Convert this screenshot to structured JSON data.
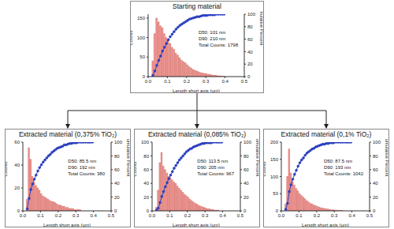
{
  "chart_data": [
    {
      "type": "histogram",
      "title": "Starting material",
      "x_label": "Length short axis (µm)",
      "y_label": "Counts",
      "y2_label": "Cumulative Percent",
      "annotations": [
        "D50: 101 nm",
        "D90: 210 nm",
        "Total Counts: 1798"
      ],
      "bins": [
        0.02,
        0.03,
        0.04,
        0.05,
        0.06,
        0.07,
        0.08,
        0.09,
        0.1,
        0.11,
        0.12,
        0.13,
        0.14,
        0.15,
        0.16,
        0.17,
        0.18,
        0.19,
        0.2,
        0.21,
        0.22,
        0.23,
        0.24,
        0.25,
        0.26,
        0.27,
        0.28,
        0.29,
        0.3,
        0.31,
        0.32,
        0.33,
        0.34,
        0.35,
        0.36,
        0.37,
        0.38,
        0.39,
        0.4
      ],
      "counts": [
        40,
        110,
        150,
        140,
        130,
        125,
        110,
        100,
        95,
        85,
        75,
        70,
        60,
        55,
        48,
        42,
        38,
        35,
        30,
        25,
        22,
        18,
        16,
        14,
        12,
        10,
        9,
        8,
        7,
        6,
        5,
        4,
        3,
        3,
        2,
        2,
        1,
        1
      ],
      "color": "#f4a0a0",
      "cumulative": {
        "type": "line",
        "axis": "y2",
        "color": "#2a3fbf",
        "marker": "circle",
        "values": [
          2,
          9,
          18,
          26,
          33,
          41,
          47,
          53,
          59,
          64,
          68,
          72,
          76,
          79,
          82,
          84,
          86,
          88,
          90,
          92,
          93,
          94,
          95,
          96,
          96,
          97,
          98,
          98,
          98,
          99,
          99,
          99,
          99,
          100,
          100,
          100,
          100,
          100
        ]
      },
      "xlim": [
        0,
        0.5
      ],
      "xticks": [
        {
          "value": 0,
          "label": "0.0"
        },
        0.1,
        0.2,
        0.3,
        0.4,
        0.5
      ],
      "ylim": [
        0,
        160
      ],
      "yticks": [
        0,
        50,
        100,
        150
      ],
      "y2lim": [
        0,
        100
      ],
      "y2ticks": [
        0,
        20,
        40,
        60,
        80,
        100
      ]
    },
    {
      "type": "histogram",
      "title": "Extracted material (0,375% TiO₂)",
      "x_label": "Length short axis (µm)",
      "y_label": "Counts",
      "y2_label": "Cumulative Percent",
      "annotations": [
        "D50: 85.5 nm",
        "D90: 192 nm",
        "Total Counts: 380"
      ],
      "bins": [
        0.02,
        0.03,
        0.04,
        0.05,
        0.06,
        0.07,
        0.08,
        0.09,
        0.1,
        0.11,
        0.12,
        0.13,
        0.14,
        0.15,
        0.16,
        0.17,
        0.18,
        0.19,
        0.2,
        0.21,
        0.22,
        0.23,
        0.24,
        0.25,
        0.26,
        0.27,
        0.28,
        0.29,
        0.3,
        0.31,
        0.32,
        0.33,
        0.34,
        0.35,
        0.36,
        0.37,
        0.38,
        0.39,
        0.4
      ],
      "counts": [
        10,
        55,
        45,
        30,
        25,
        22,
        20,
        18,
        15,
        13,
        12,
        11,
        10,
        9,
        8,
        8,
        7,
        6,
        5,
        5,
        4,
        4,
        3,
        3,
        2,
        2,
        2,
        1,
        1,
        1,
        1,
        0,
        0,
        0,
        0,
        0,
        0,
        0
      ],
      "color": "#f4a0a0",
      "cumulative": {
        "type": "line",
        "axis": "y2",
        "color": "#2a3fbf",
        "marker": "circle",
        "values": [
          3,
          18,
          31,
          39,
          46,
          52,
          58,
          63,
          67,
          71,
          74,
          77,
          80,
          82,
          85,
          87,
          89,
          91,
          92,
          93,
          94,
          96,
          96,
          97,
          98,
          98,
          99,
          99,
          99,
          100,
          100,
          100,
          100,
          100,
          100,
          100,
          100,
          100
        ]
      },
      "xlim": [
        0,
        0.5
      ],
      "xticks": [
        {
          "value": 0,
          "label": "0.0"
        },
        0.1,
        0.2,
        0.3,
        0.4,
        0.5
      ],
      "ylim": [
        0,
        60
      ],
      "yticks": [
        0,
        20,
        40,
        60
      ],
      "y2lim": [
        0,
        100
      ],
      "y2ticks": [
        0,
        20,
        40,
        60,
        80,
        100
      ]
    },
    {
      "type": "histogram",
      "title": "Extracted material (0,085% TiO₂)",
      "x_label": "Length short axis (µm)",
      "y_label": "Counts",
      "y2_label": "Cumulative Percent",
      "annotations": [
        "D50: 113.5 nm",
        "D90: 205 nm",
        "Total Counts: 967"
      ],
      "bins": [
        0.02,
        0.03,
        0.04,
        0.05,
        0.06,
        0.07,
        0.08,
        0.09,
        0.1,
        0.11,
        0.12,
        0.13,
        0.14,
        0.15,
        0.16,
        0.17,
        0.18,
        0.19,
        0.2,
        0.21,
        0.22,
        0.23,
        0.24,
        0.25,
        0.26,
        0.27,
        0.28,
        0.29,
        0.3,
        0.31,
        0.32,
        0.33,
        0.34,
        0.35,
        0.36,
        0.37,
        0.38,
        0.39,
        0.4
      ],
      "counts": [
        5,
        30,
        70,
        85,
        65,
        60,
        55,
        50,
        48,
        45,
        42,
        40,
        36,
        33,
        30,
        27,
        24,
        22,
        20,
        17,
        15,
        13,
        11,
        10,
        8,
        7,
        6,
        5,
        4,
        3,
        3,
        2,
        2,
        1,
        1,
        1,
        0,
        0
      ],
      "color": "#f4a0a0",
      "cumulative": {
        "type": "line",
        "axis": "y2",
        "color": "#2a3fbf",
        "marker": "circle",
        "values": [
          1,
          4,
          12,
          21,
          28,
          35,
          41,
          47,
          52,
          57,
          62,
          66,
          70,
          74,
          77,
          80,
          83,
          86,
          88,
          90,
          91,
          93,
          94,
          95,
          96,
          97,
          98,
          98,
          99,
          99,
          99,
          99,
          100,
          100,
          100,
          100,
          100,
          100
        ]
      },
      "xlim": [
        0,
        0.5
      ],
      "xticks": [
        {
          "value": 0,
          "label": "0.0"
        },
        0.1,
        0.2,
        0.3,
        0.4,
        0.5
      ],
      "ylim": [
        0,
        100
      ],
      "yticks": [
        0,
        20,
        40,
        60,
        80,
        100
      ],
      "y2lim": [
        0,
        100
      ],
      "y2ticks": [
        0,
        20,
        40,
        60,
        80,
        100
      ]
    },
    {
      "type": "histogram",
      "title": "Extracted material (0,1% TiO₂)",
      "x_label": "Length short axis (µm)",
      "y_label": "Counts",
      "y2_label": "Cumulative Percent",
      "annotations": [
        "D50: 87.5 nm",
        "D90: 193 nm",
        "Total Counts: 1042"
      ],
      "bins": [
        0.02,
        0.03,
        0.04,
        0.05,
        0.06,
        0.07,
        0.08,
        0.09,
        0.1,
        0.11,
        0.12,
        0.13,
        0.14,
        0.15,
        0.16,
        0.17,
        0.18,
        0.19,
        0.2,
        0.21,
        0.22,
        0.23,
        0.24,
        0.25,
        0.26,
        0.27,
        0.28,
        0.29,
        0.3,
        0.31,
        0.32,
        0.33,
        0.34,
        0.35,
        0.36,
        0.37,
        0.38,
        0.39,
        0.4
      ],
      "counts": [
        20,
        100,
        180,
        110,
        85,
        75,
        65,
        58,
        50,
        45,
        40,
        35,
        30,
        26,
        22,
        20,
        17,
        15,
        13,
        11,
        9,
        8,
        7,
        6,
        5,
        4,
        3,
        3,
        2,
        2,
        1,
        1,
        1,
        0,
        0,
        0,
        0,
        0
      ],
      "color": "#f4a0a0",
      "cumulative": {
        "type": "line",
        "axis": "y2",
        "color": "#2a3fbf",
        "marker": "circle",
        "values": [
          2,
          11,
          28,
          38,
          46,
          53,
          59,
          65,
          70,
          74,
          77,
          81,
          84,
          86,
          88,
          90,
          91,
          93,
          94,
          95,
          96,
          97,
          97,
          98,
          98,
          99,
          99,
          99,
          100,
          100,
          100,
          100,
          100,
          100,
          100,
          100,
          100,
          100
        ]
      },
      "xlim": [
        0,
        0.5
      ],
      "xticks": [
        {
          "value": 0,
          "label": "0.0"
        },
        0.1,
        0.2,
        0.3,
        0.4,
        0.5
      ],
      "ylim": [
        0,
        200
      ],
      "yticks": [
        0,
        50,
        100,
        150,
        200
      ],
      "y2lim": [
        0,
        100
      ],
      "y2ticks": [
        0,
        20,
        40,
        60,
        80,
        100
      ]
    }
  ]
}
